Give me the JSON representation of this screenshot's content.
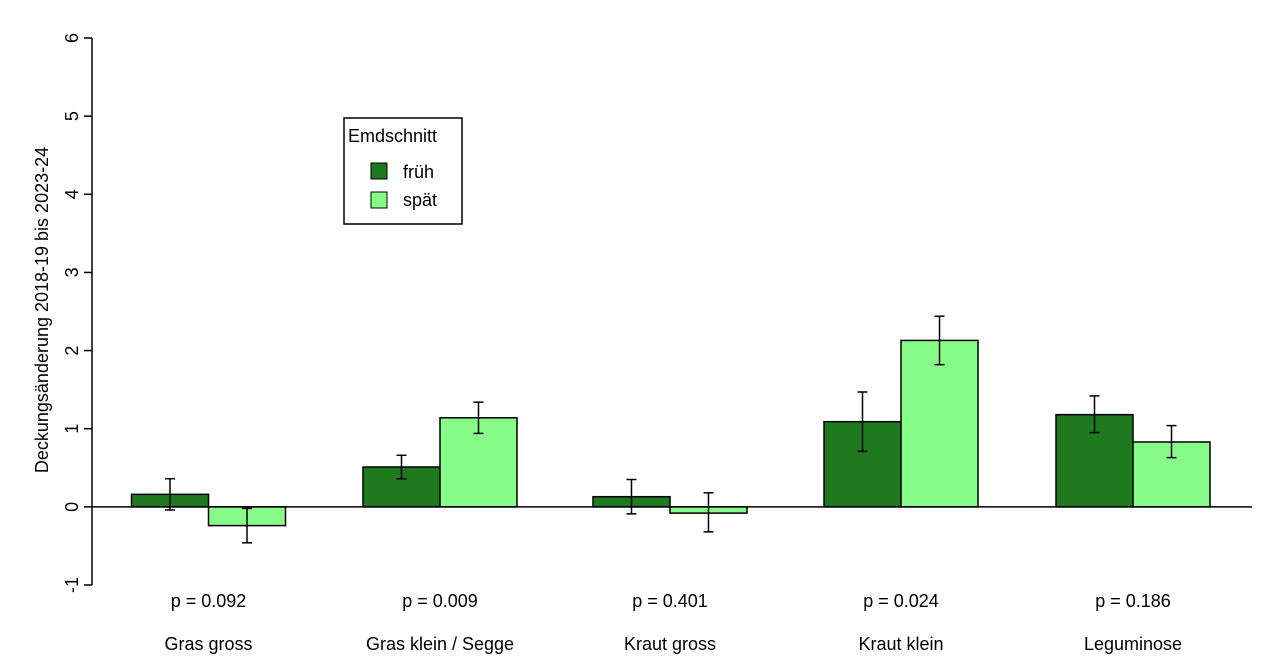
{
  "chart_data": {
    "type": "bar",
    "ylabel": "Deckungsänderung 2018-19 bis 2023-24",
    "ylim": [
      -1,
      6
    ],
    "yticks": [
      -1,
      0,
      1,
      2,
      3,
      4,
      5,
      6
    ],
    "categories": [
      "Gras gross",
      "Gras klein / Segge",
      "Kraut gross",
      "Kraut klein",
      "Leguminose"
    ],
    "p_values": [
      "p = 0.092",
      "p = 0.009",
      "p = 0.401",
      "p = 0.024",
      "p = 0.186"
    ],
    "legend": {
      "title": "Emdschnitt",
      "position": "top-left"
    },
    "series": [
      {
        "name": "früh",
        "color": "#1f7a1f",
        "values": [
          0.16,
          0.51,
          0.13,
          1.09,
          1.18
        ],
        "err_low": [
          -0.04,
          0.36,
          -0.09,
          0.71,
          0.95
        ],
        "err_high": [
          0.36,
          0.66,
          0.35,
          1.47,
          1.42
        ]
      },
      {
        "name": "spät",
        "color": "#88fc88",
        "values": [
          -0.24,
          1.14,
          -0.08,
          2.13,
          0.83
        ],
        "err_low": [
          -0.46,
          0.94,
          -0.32,
          1.82,
          0.63
        ],
        "err_high": [
          -0.02,
          1.34,
          0.18,
          2.44,
          1.04
        ]
      }
    ]
  }
}
